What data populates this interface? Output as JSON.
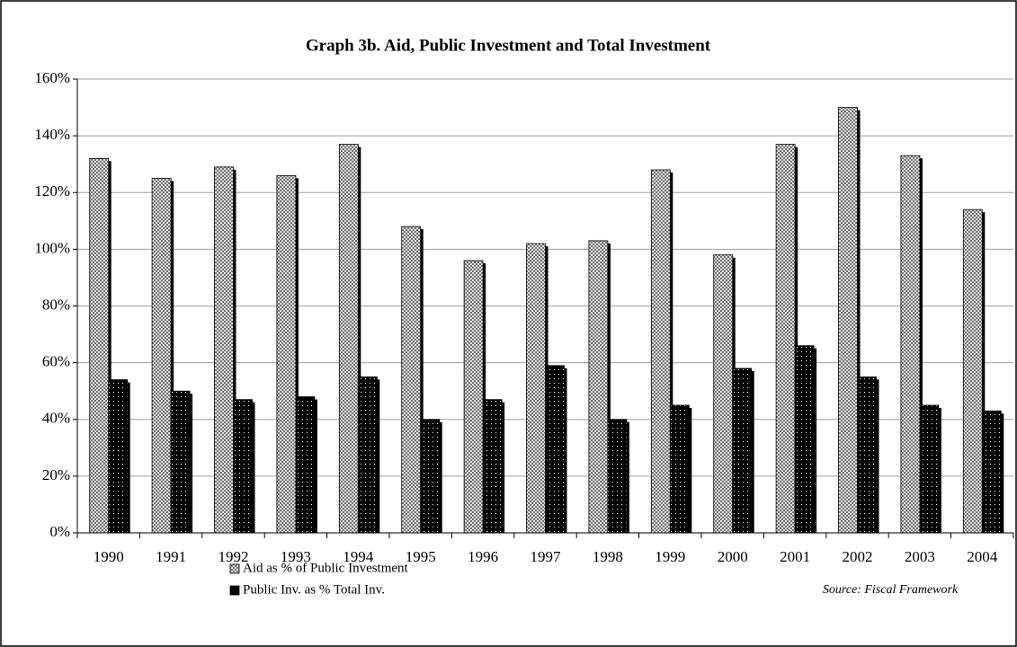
{
  "chart_data": {
    "type": "bar",
    "title": "Graph 3b. Aid, Public Investment and Total Investment",
    "categories": [
      "1990",
      "1991",
      "1992",
      "1993",
      "1994",
      "1995",
      "1996",
      "1997",
      "1998",
      "1999",
      "2000",
      "2001",
      "2002",
      "2003",
      "2004"
    ],
    "series": [
      {
        "name": "Aid as % of Public Investment",
        "color": "#d9d9d9",
        "values": [
          132,
          125,
          129,
          126,
          137,
          108,
          96,
          102,
          103,
          128,
          98,
          137,
          150,
          133,
          114
        ]
      },
      {
        "name": "Public Inv.  as % Total Inv.",
        "color": "#000000",
        "values": [
          54,
          50,
          47,
          48,
          55,
          40,
          47,
          59,
          40,
          45,
          58,
          66,
          55,
          45,
          43
        ]
      }
    ],
    "ylim": [
      0,
      160
    ],
    "yticks": [
      {
        "value": 0,
        "label": "0%"
      },
      {
        "value": 20,
        "label": "20%"
      },
      {
        "value": 40,
        "label": "40%"
      },
      {
        "value": 60,
        "label": "60%"
      },
      {
        "value": 80,
        "label": "80%"
      },
      {
        "value": 100,
        "label": "100%"
      },
      {
        "value": 120,
        "label": "120%"
      },
      {
        "value": 140,
        "label": "140%"
      },
      {
        "value": 160,
        "label": "160%"
      }
    ],
    "grid": true,
    "source": "Source: Fiscal Framework"
  }
}
